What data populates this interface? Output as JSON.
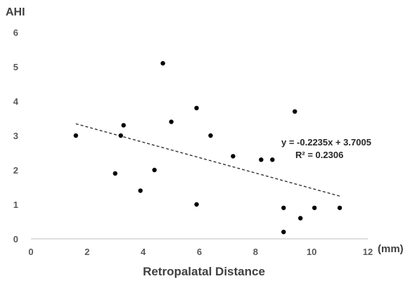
{
  "chart_data": {
    "type": "scatter",
    "title": "",
    "ylabel": "AHI",
    "xlabel": "Retropalatal Distance",
    "x_unit": "(mm)",
    "xlim": [
      0,
      12
    ],
    "ylim": [
      0,
      6
    ],
    "x_ticks": [
      "0",
      "2",
      "4",
      "6",
      "8",
      "10",
      "12"
    ],
    "y_ticks": [
      "0",
      "1",
      "2",
      "3",
      "4",
      "5",
      "6"
    ],
    "grid": false,
    "legend": "none",
    "points": [
      {
        "x": 1.6,
        "y": 3.0
      },
      {
        "x": 3.0,
        "y": 1.9
      },
      {
        "x": 3.2,
        "y": 3.0
      },
      {
        "x": 3.3,
        "y": 3.3
      },
      {
        "x": 3.9,
        "y": 1.4
      },
      {
        "x": 4.4,
        "y": 2.0
      },
      {
        "x": 4.7,
        "y": 5.1
      },
      {
        "x": 5.0,
        "y": 3.4
      },
      {
        "x": 5.9,
        "y": 3.8
      },
      {
        "x": 5.9,
        "y": 1.0
      },
      {
        "x": 6.4,
        "y": 3.0
      },
      {
        "x": 7.2,
        "y": 2.4
      },
      {
        "x": 8.2,
        "y": 2.3
      },
      {
        "x": 8.6,
        "y": 2.3
      },
      {
        "x": 9.0,
        "y": 0.9
      },
      {
        "x": 9.0,
        "y": 0.2
      },
      {
        "x": 9.4,
        "y": 3.7
      },
      {
        "x": 9.6,
        "y": 0.6
      },
      {
        "x": 10.1,
        "y": 0.9
      },
      {
        "x": 11.0,
        "y": 0.9
      }
    ],
    "trendline": {
      "type": "linear",
      "slope": -0.2235,
      "intercept": 3.7005,
      "x_range": [
        1.6,
        11.0
      ],
      "style": "dashed",
      "equation": "y = -0.2235x + 3.7005",
      "r_squared": "R² = 0.2306"
    },
    "colors": {
      "points": "#000000",
      "trendline": "#333333",
      "axis": "#bfbfbf"
    }
  }
}
